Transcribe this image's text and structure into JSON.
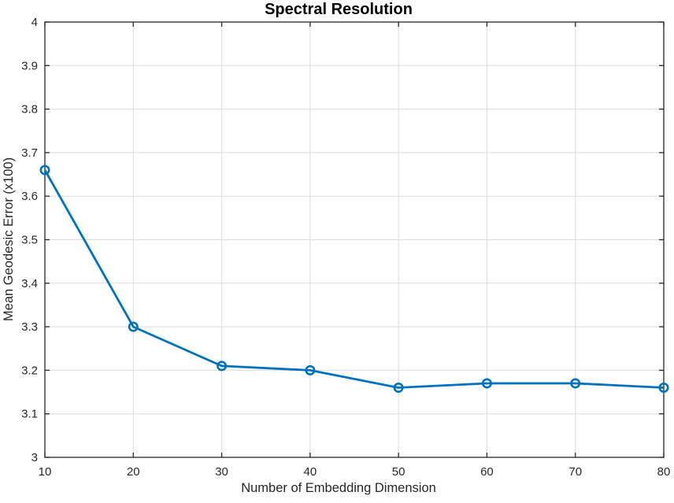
{
  "chart_data": {
    "type": "line",
    "title": "Spectral Resolution",
    "xlabel": "Number of Embedding Dimension",
    "ylabel": "Mean Geodesic Error (x100)",
    "x": [
      10,
      20,
      30,
      40,
      50,
      60,
      70,
      80
    ],
    "series": [
      {
        "name": "Mean Geodesic Error (x100)",
        "values": [
          3.66,
          3.3,
          3.21,
          3.2,
          3.16,
          3.17,
          3.17,
          3.16
        ]
      }
    ],
    "xlim": [
      10,
      80
    ],
    "ylim": [
      3,
      4
    ],
    "xticks": [
      10,
      20,
      30,
      40,
      50,
      60,
      70,
      80
    ],
    "xtick_labels": [
      "10",
      "20",
      "30",
      "40",
      "50",
      "60",
      "70",
      "80"
    ],
    "yticks": [
      3,
      3.1,
      3.2,
      3.3,
      3.4,
      3.5,
      3.6,
      3.7,
      3.8,
      3.9,
      4
    ],
    "ytick_labels": [
      "3",
      "3.1",
      "3.2",
      "3.3",
      "3.4",
      "3.5",
      "3.6",
      "3.7",
      "3.8",
      "3.9",
      "4"
    ],
    "grid": true,
    "legend": "none",
    "marker": "open-circle",
    "line_color": "#0072BD",
    "grid_color": "#DBDBDB",
    "axis_color": "#262626",
    "title_color": "#000000",
    "background_color": "#FFFFFF"
  }
}
